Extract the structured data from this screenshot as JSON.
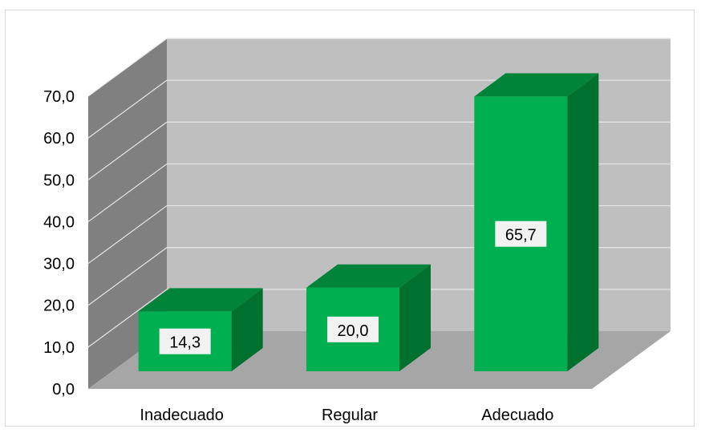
{
  "chart_data": {
    "type": "bar",
    "style": "3d-column",
    "categories": [
      "Inadecuado",
      "Regular",
      "Adecuado"
    ],
    "values": [
      14.3,
      20.0,
      65.7
    ],
    "value_labels": [
      "14,3",
      "20,0",
      "65,7"
    ],
    "y_ticks": [
      "0,0",
      "10,0",
      "20,0",
      "30,0",
      "40,0",
      "50,0",
      "60,0",
      "70,0"
    ],
    "ylim": [
      0,
      70
    ],
    "title": "",
    "xlabel": "",
    "ylabel": "",
    "grid": true,
    "legend": "none",
    "colors": {
      "bar_front": "#00b050",
      "bar_top": "#00843a",
      "bar_side": "#00702f",
      "back_wall": "#bfbfbf",
      "side_wall": "#808080",
      "floor": "#a6a6a6",
      "gridline": "#e6e6e6"
    }
  }
}
